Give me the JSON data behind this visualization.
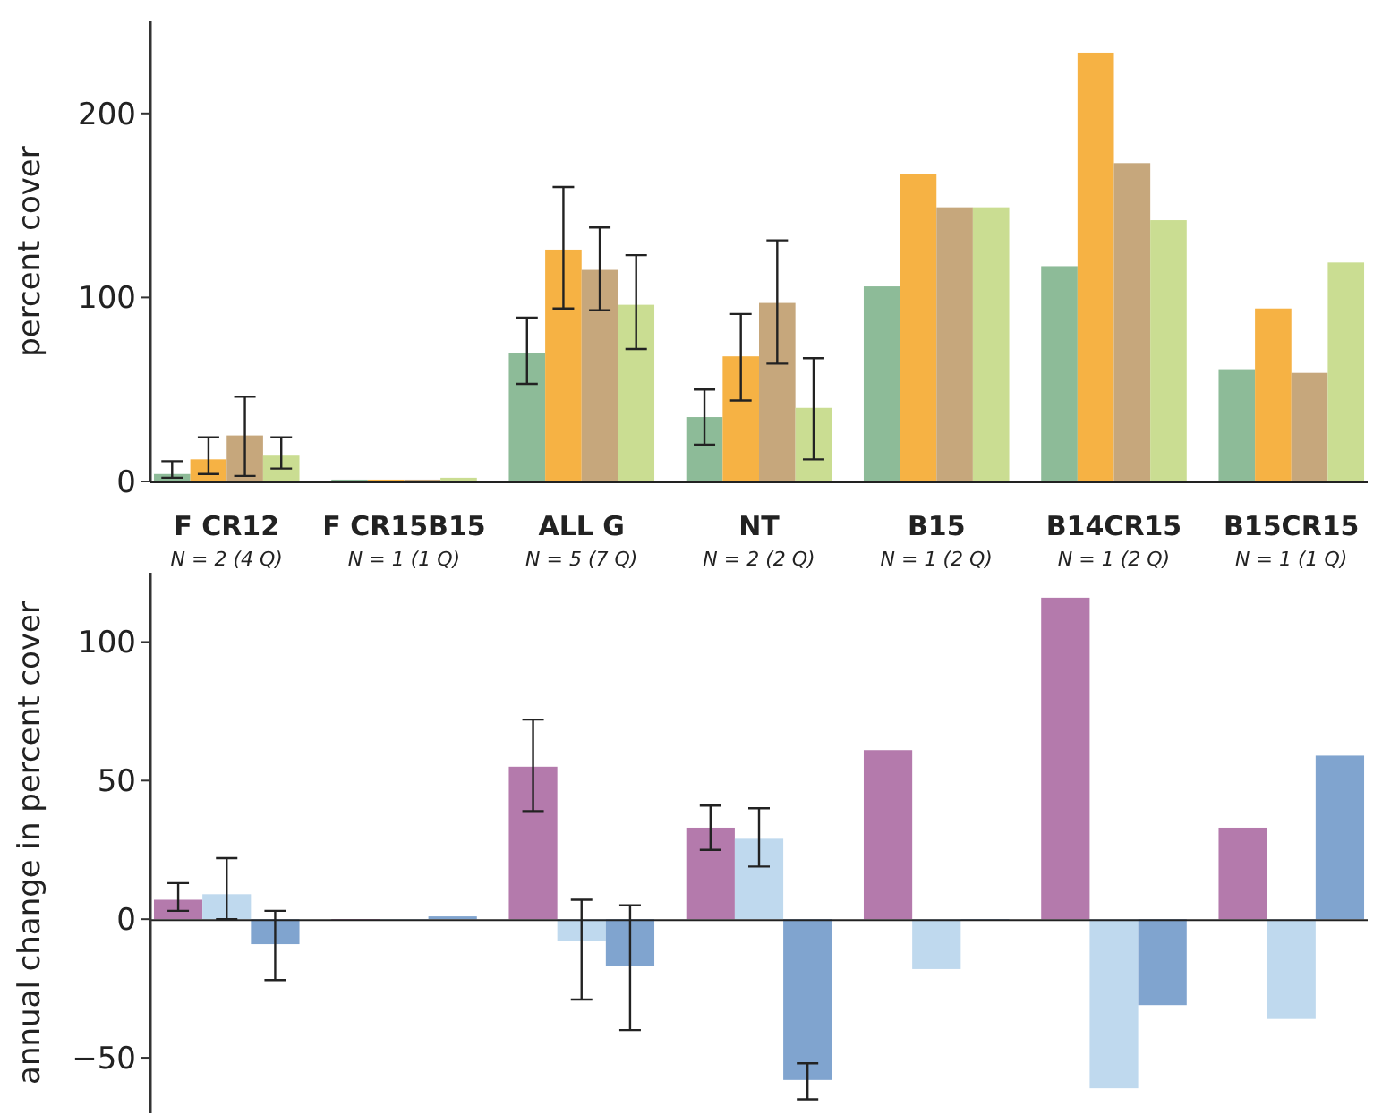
{
  "chart_data": [
    {
      "type": "bar",
      "ylabel": "percent cover",
      "categories": [
        "F CR12",
        "F CR15B15",
        "ALL G",
        "NT",
        "B15",
        "B14CR15",
        "B15CR15"
      ],
      "ylim": [
        0,
        250
      ],
      "yticks": [
        0,
        100,
        200
      ],
      "series": [
        {
          "color": "#8dbb98",
          "values": [
            4,
            1,
            70,
            35,
            106,
            117,
            61
          ],
          "errors": [
            [
              2,
              11
            ],
            null,
            [
              53,
              89
            ],
            [
              20,
              50
            ],
            null,
            null,
            null
          ]
        },
        {
          "color": "#f6b244",
          "values": [
            12,
            1,
            126,
            68,
            167,
            233,
            94
          ],
          "errors": [
            [
              4,
              24
            ],
            null,
            [
              94,
              160
            ],
            [
              44,
              91
            ],
            null,
            null,
            null
          ]
        },
        {
          "color": "#c6a77c",
          "values": [
            25,
            1,
            115,
            97,
            149,
            173,
            59
          ],
          "errors": [
            [
              3,
              46
            ],
            null,
            [
              93,
              138
            ],
            [
              64,
              131
            ],
            null,
            null,
            null
          ]
        },
        {
          "color": "#cadd92",
          "values": [
            14,
            2,
            96,
            40,
            149,
            142,
            119
          ],
          "errors": [
            [
              7,
              24
            ],
            null,
            [
              72,
              123
            ],
            [
              12,
              67
            ],
            null,
            null,
            null
          ]
        }
      ]
    },
    {
      "type": "bar",
      "ylabel": "annual change in percent cover",
      "categories": [
        "N = 2 (4 Q)",
        "N = 1 (1 Q)",
        "N = 5 (7 Q)",
        "N = 2 (2 Q)",
        "N = 1 (2 Q)",
        "N = 1 (2 Q)",
        "N = 1 (1 Q)"
      ],
      "ylim": [
        -70,
        125
      ],
      "yticks": [
        -50,
        0,
        50,
        100
      ],
      "series": [
        {
          "color": "#b47aac",
          "values": [
            7,
            0,
            55,
            33,
            61,
            116,
            33
          ],
          "errors": [
            [
              3,
              13
            ],
            null,
            [
              39,
              72
            ],
            [
              25,
              41
            ],
            null,
            null,
            null
          ]
        },
        {
          "color": "#bfd9ee",
          "values": [
            9,
            0,
            -8,
            29,
            -18,
            -61,
            -36
          ],
          "errors": [
            [
              0,
              22
            ],
            null,
            [
              -29,
              7
            ],
            [
              19,
              40
            ],
            null,
            null,
            null
          ]
        },
        {
          "color": "#80a4cf",
          "values": [
            -9,
            1,
            -17,
            -58,
            0,
            -31,
            59
          ],
          "errors": [
            [
              -22,
              3
            ],
            null,
            [
              -40,
              5
            ],
            [
              -65,
              -52
            ],
            null,
            null,
            null
          ]
        }
      ]
    }
  ]
}
